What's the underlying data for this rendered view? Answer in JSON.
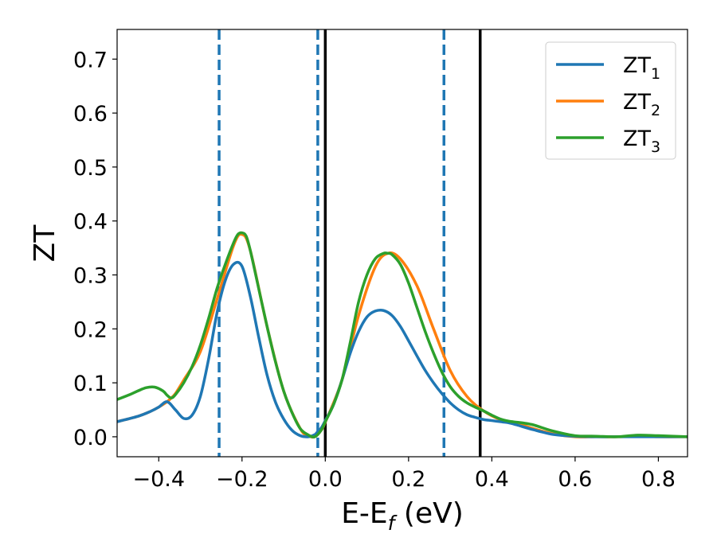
{
  "chart_data": {
    "type": "line",
    "xlabel": "E-E$_f$ (eV)",
    "xlabel_parts": {
      "base": "E-E",
      "sub": "f",
      "unit": " (eV)"
    },
    "ylabel": "ZT",
    "xlim": [
      -0.5,
      0.87
    ],
    "ylim": [
      -0.037,
      0.755
    ],
    "xticks": [
      -0.4,
      -0.2,
      0.0,
      0.2,
      0.4,
      0.6,
      0.8
    ],
    "xtick_labels": [
      "−0.4",
      "−0.2",
      "0.0",
      "0.2",
      "0.4",
      "0.6",
      "0.8"
    ],
    "yticks": [
      0.0,
      0.1,
      0.2,
      0.3,
      0.4,
      0.5,
      0.6,
      0.7
    ],
    "ytick_labels": [
      "0.0",
      "0.1",
      "0.2",
      "0.3",
      "0.4",
      "0.5",
      "0.6",
      "0.7"
    ],
    "grid": false,
    "legend_position": "top-right",
    "series": [
      {
        "name": "ZT",
        "name_sub": "1",
        "color": "#1f77b4",
        "x": [
          -0.5,
          -0.45,
          -0.42,
          -0.4,
          -0.38,
          -0.36,
          -0.34,
          -0.32,
          -0.3,
          -0.28,
          -0.26,
          -0.24,
          -0.22,
          -0.2,
          -0.18,
          -0.16,
          -0.14,
          -0.12,
          -0.1,
          -0.08,
          -0.06,
          -0.04,
          -0.025,
          -0.02,
          -0.01,
          0.0,
          0.02,
          0.04,
          0.06,
          0.08,
          0.1,
          0.12,
          0.14,
          0.16,
          0.18,
          0.2,
          0.22,
          0.24,
          0.26,
          0.28,
          0.3,
          0.32,
          0.34,
          0.36,
          0.38,
          0.4,
          0.42,
          0.44,
          0.46,
          0.5,
          0.55,
          0.6,
          0.65,
          0.7,
          0.75,
          0.8,
          0.87
        ],
        "y": [
          0.028,
          0.038,
          0.047,
          0.055,
          0.065,
          0.05,
          0.034,
          0.04,
          0.075,
          0.145,
          0.23,
          0.29,
          0.32,
          0.316,
          0.26,
          0.185,
          0.115,
          0.065,
          0.033,
          0.012,
          0.002,
          0.0,
          0.004,
          0.008,
          0.016,
          0.03,
          0.06,
          0.105,
          0.155,
          0.195,
          0.222,
          0.233,
          0.234,
          0.225,
          0.205,
          0.178,
          0.15,
          0.123,
          0.1,
          0.08,
          0.063,
          0.05,
          0.041,
          0.036,
          0.032,
          0.03,
          0.028,
          0.026,
          0.022,
          0.013,
          0.004,
          0.001,
          0.0,
          0.0,
          0.0,
          0.0,
          0.0
        ]
      },
      {
        "name": "ZT",
        "name_sub": "2",
        "color": "#ff7f0e",
        "x": [
          -0.5,
          -0.45,
          -0.42,
          -0.4,
          -0.38,
          -0.37,
          -0.36,
          -0.34,
          -0.3,
          -0.26,
          -0.22,
          -0.2,
          -0.18,
          -0.14,
          -0.1,
          -0.06,
          -0.04,
          -0.025,
          -0.01,
          0.0,
          0.04,
          0.08,
          0.12,
          0.15,
          0.18,
          0.22,
          0.26,
          0.3,
          0.34,
          0.38,
          0.42,
          0.46,
          0.5,
          0.55,
          0.6,
          0.65,
          0.7,
          0.75,
          0.8,
          0.87
        ],
        "y": [
          0.028,
          0.038,
          0.047,
          0.055,
          0.065,
          0.072,
          0.08,
          0.105,
          0.158,
          0.255,
          0.355,
          0.375,
          0.345,
          0.205,
          0.085,
          0.015,
          0.002,
          0.0,
          0.012,
          0.027,
          0.105,
          0.225,
          0.315,
          0.34,
          0.33,
          0.28,
          0.2,
          0.123,
          0.075,
          0.048,
          0.032,
          0.025,
          0.015,
          0.005,
          0.0,
          0.0,
          0.0,
          0.001,
          0.0,
          0.0
        ]
      },
      {
        "name": "ZT",
        "name_sub": "3",
        "color": "#2ca02c",
        "x": [
          -0.5,
          -0.47,
          -0.45,
          -0.43,
          -0.41,
          -0.39,
          -0.38,
          -0.37,
          -0.36,
          -0.34,
          -0.32,
          -0.3,
          -0.28,
          -0.26,
          -0.24,
          -0.22,
          -0.21,
          -0.2,
          -0.19,
          -0.18,
          -0.16,
          -0.14,
          -0.12,
          -0.1,
          -0.08,
          -0.06,
          -0.04,
          -0.025,
          -0.01,
          0.0,
          0.02,
          0.04,
          0.06,
          0.08,
          0.1,
          0.12,
          0.14,
          0.15,
          0.16,
          0.18,
          0.2,
          0.22,
          0.24,
          0.26,
          0.28,
          0.3,
          0.32,
          0.34,
          0.36,
          0.38,
          0.4,
          0.42,
          0.44,
          0.46,
          0.48,
          0.5,
          0.52,
          0.55,
          0.6,
          0.65,
          0.7,
          0.75,
          0.8,
          0.87
        ],
        "y": [
          0.069,
          0.078,
          0.085,
          0.091,
          0.092,
          0.085,
          0.077,
          0.072,
          0.078,
          0.1,
          0.13,
          0.17,
          0.22,
          0.275,
          0.32,
          0.36,
          0.375,
          0.378,
          0.372,
          0.345,
          0.275,
          0.205,
          0.14,
          0.085,
          0.045,
          0.015,
          0.003,
          0.0,
          0.012,
          0.028,
          0.06,
          0.105,
          0.175,
          0.25,
          0.3,
          0.33,
          0.34,
          0.34,
          0.338,
          0.32,
          0.285,
          0.24,
          0.195,
          0.155,
          0.12,
          0.093,
          0.075,
          0.063,
          0.055,
          0.048,
          0.04,
          0.033,
          0.029,
          0.027,
          0.025,
          0.022,
          0.017,
          0.01,
          0.002,
          0.001,
          0.0,
          0.003,
          0.002,
          0.0
        ]
      }
    ],
    "vlines": [
      {
        "x": -0.255,
        "style": "dashed",
        "color": "#1f77b4"
      },
      {
        "x": -0.018,
        "style": "dashed",
        "color": "#1f77b4"
      },
      {
        "x": 0.285,
        "style": "dashed",
        "color": "#1f77b4"
      },
      {
        "x": 0.0,
        "style": "solid",
        "color": "#000000"
      },
      {
        "x": 0.372,
        "style": "solid",
        "color": "#000000"
      }
    ]
  }
}
